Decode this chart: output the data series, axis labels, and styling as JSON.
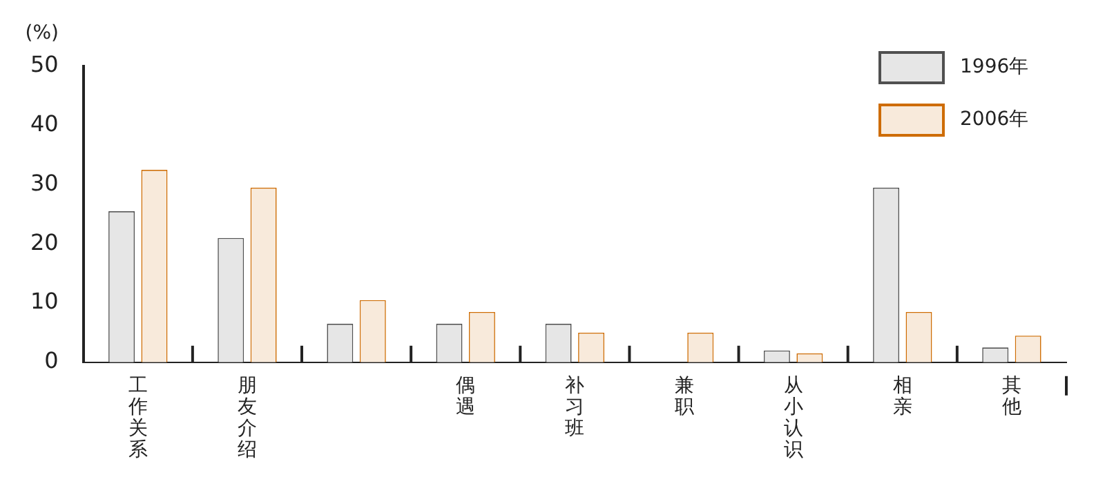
{
  "chart_data": {
    "type": "bar",
    "ylabel": "(%)",
    "categories": [
      "工作关系",
      "朋友介绍",
      null,
      "偶遇",
      "补习班",
      "兼职",
      "从小认识",
      "相亲",
      "其他"
    ],
    "series": [
      {
        "name": "1996年",
        "color": "#e6e6e6",
        "values": [
          25.5,
          21,
          6.5,
          6.5,
          6.5,
          null,
          2,
          29.5,
          2.5
        ]
      },
      {
        "name": "2006年",
        "color": "#f8eadb",
        "values": [
          32.5,
          29.5,
          10.5,
          8.5,
          5,
          5,
          1.5,
          8.5,
          4.5
        ]
      }
    ],
    "ylim": [
      0,
      50
    ],
    "yticks": [
      0,
      10,
      20,
      30,
      40,
      50
    ],
    "grid": false,
    "legend": "top right"
  }
}
